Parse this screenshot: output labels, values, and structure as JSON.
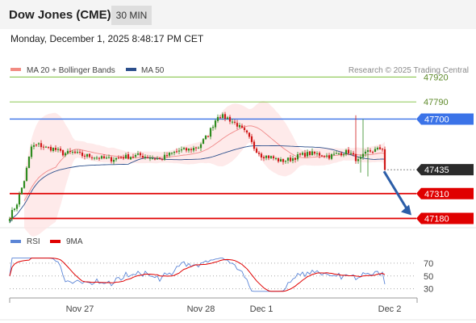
{
  "header": {
    "title": "Dow Jones (CME)",
    "timeframe": "30 MIN"
  },
  "datetime": "Monday, December 1, 2025 8:48:17 PM CET",
  "legend": {
    "ma20": {
      "label": "MA 20 + Bollinger Bands",
      "color": "#f28b82"
    },
    "ma50": {
      "label": "MA 50",
      "color": "#2c4f8c"
    }
  },
  "source": "Research © 2025 Trading Central",
  "chart_data": {
    "type": "candlestick",
    "y_range": [
      47140,
      47985
    ],
    "levels": [
      {
        "value": 47920,
        "label": "47920",
        "kind": "resistance",
        "color": "#7bbf3c"
      },
      {
        "value": 47790,
        "label": "47790",
        "kind": "resistance",
        "color": "#7bbf3c"
      },
      {
        "value": 47700,
        "label": "47700",
        "kind": "pivot",
        "color": "#3b73e8"
      },
      {
        "value": 47435,
        "label": "47435",
        "kind": "last",
        "color": "#2b2b2b"
      },
      {
        "value": 47310,
        "label": "47310",
        "kind": "support",
        "color": "#e00000"
      },
      {
        "value": 47180,
        "label": "47180",
        "kind": "support",
        "color": "#e00000"
      }
    ],
    "forecast_arrow": {
      "from": 47435,
      "to": 47180,
      "color": "#2c5ea8"
    },
    "anchors": [
      [
        0,
        47190
      ],
      [
        3,
        47260
      ],
      [
        6,
        47380
      ],
      [
        9,
        47555
      ],
      [
        12,
        47565
      ],
      [
        15,
        47550
      ],
      [
        18,
        47545
      ],
      [
        22,
        47520
      ],
      [
        26,
        47525
      ],
      [
        30,
        47510
      ],
      [
        34,
        47505
      ],
      [
        38,
        47495
      ],
      [
        42,
        47490
      ],
      [
        46,
        47500
      ],
      [
        50,
        47505
      ],
      [
        54,
        47510
      ],
      [
        58,
        47500
      ],
      [
        62,
        47490
      ],
      [
        66,
        47515
      ],
      [
        70,
        47535
      ],
      [
        74,
        47540
      ],
      [
        78,
        47555
      ],
      [
        82,
        47620
      ],
      [
        86,
        47720
      ],
      [
        90,
        47705
      ],
      [
        94,
        47670
      ],
      [
        98,
        47620
      ],
      [
        101,
        47550
      ],
      [
        104,
        47510
      ],
      [
        108,
        47500
      ],
      [
        112,
        47480
      ],
      [
        116,
        47490
      ],
      [
        120,
        47510
      ],
      [
        124,
        47520
      ],
      [
        128,
        47515
      ],
      [
        132,
        47505
      ],
      [
        136,
        47520
      ],
      [
        140,
        47530
      ],
      [
        144,
        47480
      ],
      [
        148,
        47530
      ],
      [
        152,
        47540
      ],
      [
        154,
        47550
      ],
      [
        155,
        47435
      ]
    ],
    "x_ticks": [
      {
        "label": "Nov 27",
        "index": 27
      },
      {
        "label": "Nov 28",
        "index": 77
      },
      {
        "label": "Dec 1",
        "index": 102
      },
      {
        "label": "Dec 2",
        "index": 155
      }
    ],
    "rsi": {
      "y_range": [
        22,
        80
      ],
      "levels": [
        70,
        50,
        30
      ],
      "legend": [
        {
          "label": "RSI",
          "color": "#5b85d6"
        },
        {
          "label": "9MA",
          "color": "#e00000"
        }
      ]
    }
  }
}
